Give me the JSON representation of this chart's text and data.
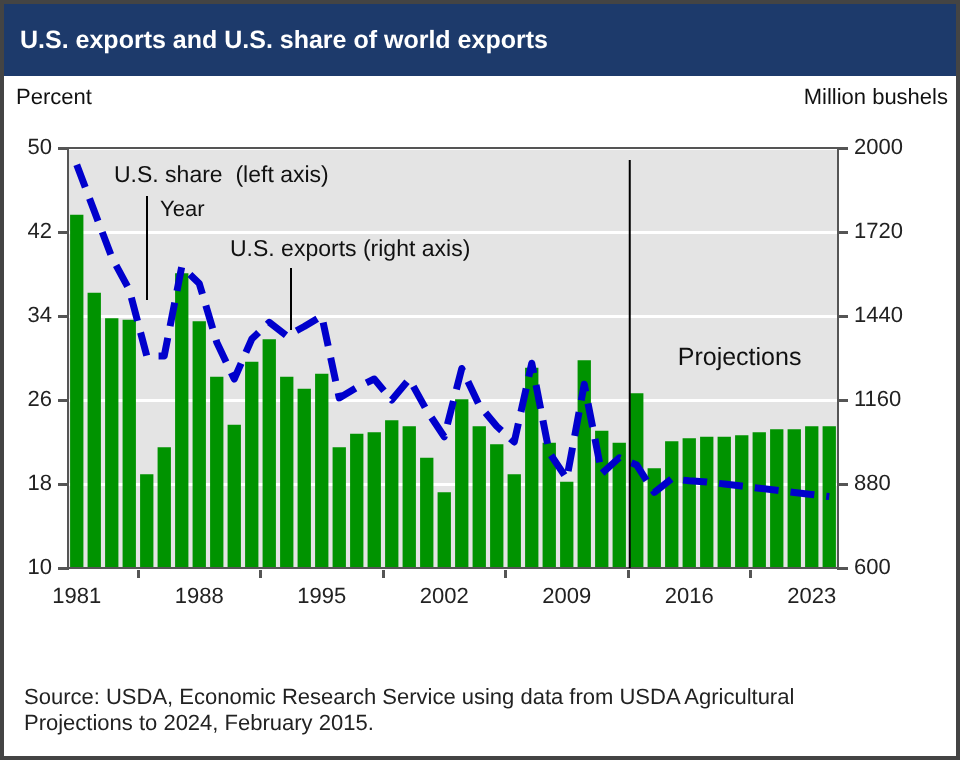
{
  "chart_data": {
    "type": "bar",
    "title": "U.S. exports and U.S. share of world exports",
    "xlabel": "Year",
    "ylabel": "Percent",
    "y2label": "Million bushels",
    "x": [
      1981,
      1982,
      1983,
      1984,
      1985,
      1986,
      1987,
      1988,
      1989,
      1990,
      1991,
      1992,
      1993,
      1994,
      1995,
      1996,
      1997,
      1998,
      1999,
      2000,
      2001,
      2002,
      2003,
      2004,
      2005,
      2006,
      2007,
      2008,
      2009,
      2010,
      2011,
      2012,
      2013,
      2014,
      2015,
      2016,
      2017,
      2018,
      2019,
      2020,
      2021,
      2022,
      2023,
      2024
    ],
    "xlim": [
      1980.5,
      2024.5
    ],
    "xticks": [
      1981,
      1988,
      1995,
      2002,
      2009,
      2016,
      2023
    ],
    "ylim": [
      10,
      50
    ],
    "yticks": [
      10,
      18,
      26,
      34,
      42,
      50
    ],
    "y2lim": [
      600,
      2000
    ],
    "y2ticks": [
      600,
      880,
      1160,
      1440,
      1720,
      2000
    ],
    "series": [
      {
        "axis": "y2",
        "color": "#009300",
        "values": [
          1775,
          1515,
          1430,
          1425,
          910,
          1000,
          1580,
          1420,
          1235,
          1075,
          1285,
          1360,
          1235,
          1195,
          1245,
          1000,
          1045,
          1050,
          1090,
          1070,
          965,
          850,
          1160,
          1070,
          1010,
          910,
          1265,
          1015,
          885,
          1290,
          1055,
          1015,
          1180,
          930,
          1020,
          1030,
          1035,
          1035,
          1040,
          1050,
          1060,
          1060,
          1070,
          1070
        ]
      },
      {
        "type": "line",
        "color": "#0000cc",
        "line_style": "dashed",
        "marker": "none",
        "values": [
          48.4,
          44,
          39.6,
          36.5,
          30.2,
          30.2,
          38.7,
          37.1,
          31.5,
          28,
          31.8,
          33.4,
          32.1,
          33,
          34,
          26.2,
          27.2,
          28,
          26,
          28,
          25,
          22.5,
          29,
          25.5,
          23.5,
          22,
          29.5,
          21,
          18.5,
          27.5,
          19,
          20.5,
          19.8,
          17.2,
          18.5,
          18.3,
          18.2,
          18,
          17.8,
          17.6,
          17.4,
          17.2,
          17,
          16.8
        ]
      }
    ],
    "grid": "y",
    "ref_lines": [
      {
        "axis": "x",
        "value": 2012.6,
        "label": "Projections",
        "color": "#000000"
      }
    ],
    "annotations": [
      "U.S. share  (left axis)",
      "U.S. exports (right axis)",
      "Source: USDA, Economic Research Service using data from USDA Agricultural Projections to 2024, February 2015."
    ]
  }
}
